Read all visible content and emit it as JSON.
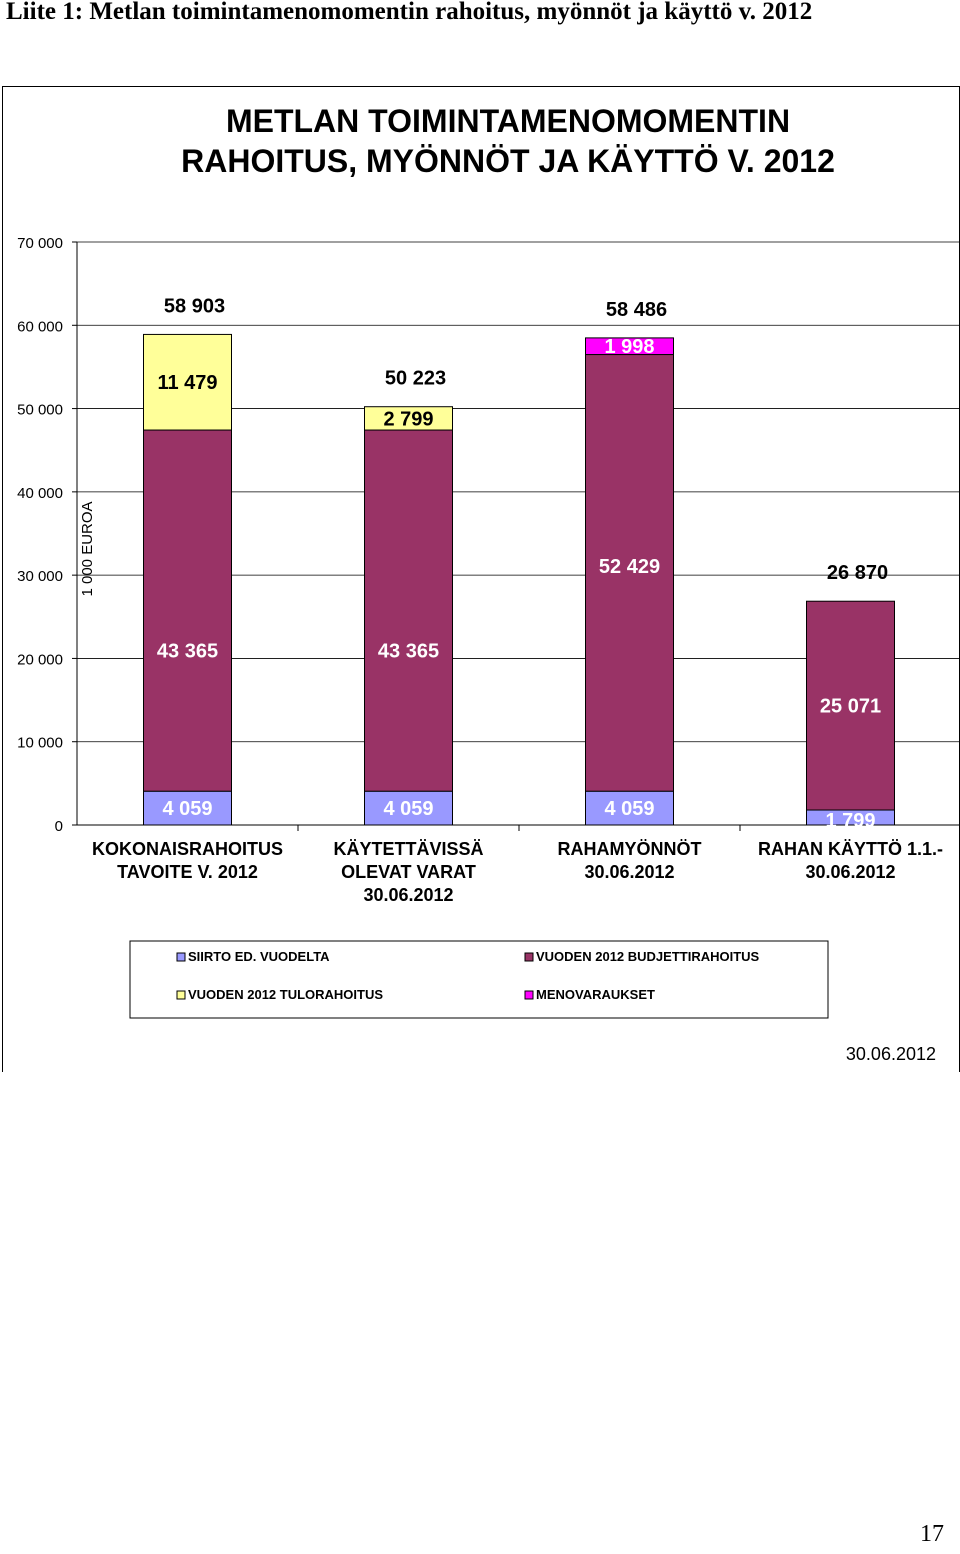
{
  "heading": "Liite 1: Metlan toimintamenomomentin rahoitus, myönnöt ja käyttö v. 2012",
  "page_number": "17",
  "chart_data": {
    "type": "bar",
    "stacked": true,
    "title_lines": [
      "METLAN TOIMINTAMENOMOMENTIN",
      "RAHOITUS, MYÖNNÖT JA KÄYTTÖ V. 2012"
    ],
    "ylabel": "1 000 EUROA",
    "ylim": [
      0,
      70000
    ],
    "yticks": [
      0,
      10000,
      20000,
      30000,
      40000,
      50000,
      60000,
      70000
    ],
    "ytick_labels": [
      "0",
      "10 000",
      "20 000",
      "30 000",
      "40 000",
      "50 000",
      "60 000",
      "70 000"
    ],
    "grid": "horizontal",
    "date_note": "30.06.2012",
    "categories": [
      [
        "KOKONAISRAHOITUS",
        "TAVOITE V. 2012"
      ],
      [
        "KÄYTETTÄVISSÄ",
        "OLEVAT VARAT",
        "30.06.2012"
      ],
      [
        "RAHAMYÖNNÖT",
        "30.06.2012"
      ],
      [
        "RAHAN KÄYTTÖ 1.1.-",
        "30.06.2012"
      ]
    ],
    "series": [
      {
        "name": "SIIRTO ED. VUODELTA",
        "color": "#9999ff",
        "values": [
          4059,
          4059,
          4059,
          1799
        ],
        "labels": [
          "4 059",
          "4 059",
          "4 059",
          "1 799"
        ]
      },
      {
        "name": "VUODEN 2012 BUDJETTIRAHOITUS",
        "color": "#993366",
        "values": [
          43365,
          43365,
          52429,
          25071
        ],
        "labels": [
          "43 365",
          "43 365",
          "52 429",
          "25 071"
        ]
      },
      {
        "name": "VUODEN 2012 TULORAHOITUS",
        "color": "#ffff99",
        "values": [
          11479,
          2799,
          0,
          0
        ],
        "labels": [
          "11 479",
          "2 799",
          "",
          ""
        ]
      },
      {
        "name": "MENOVARAUKSET",
        "color": "#ff00ff",
        "values": [
          0,
          0,
          1998,
          0
        ],
        "labels": [
          "",
          "",
          "1 998",
          ""
        ]
      }
    ],
    "totals": [
      58903,
      50223,
      58486,
      26870
    ],
    "total_labels": [
      "58 903",
      "50 223",
      "58 486",
      "26 870"
    ],
    "legend": {
      "placement": "bottom",
      "order": [
        "SIIRTO ED. VUODELTA",
        "VUODEN 2012 BUDJETTIRAHOITUS",
        "VUODEN 2012 TULORAHOITUS",
        "MENOVARAUKSET"
      ]
    }
  }
}
